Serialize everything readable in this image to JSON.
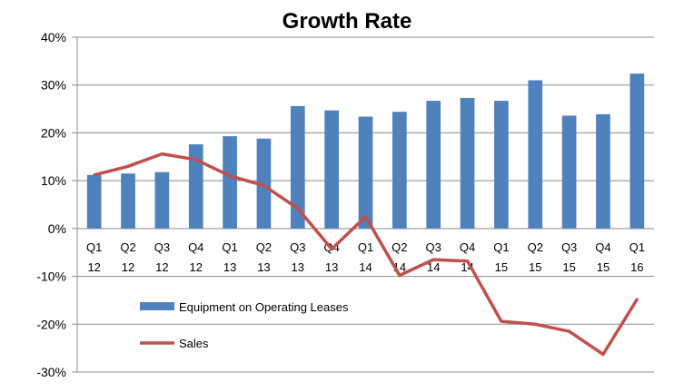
{
  "chart_data": {
    "type": "bar",
    "title": "Growth Rate",
    "categories": [
      [
        "Q1",
        "12"
      ],
      [
        "Q2",
        "12"
      ],
      [
        "Q3",
        "12"
      ],
      [
        "Q4",
        "12"
      ],
      [
        "Q1",
        "13"
      ],
      [
        "Q2",
        "13"
      ],
      [
        "Q3",
        "13"
      ],
      [
        "Q4",
        "13"
      ],
      [
        "Q1",
        "14"
      ],
      [
        "Q2",
        "14"
      ],
      [
        "Q3",
        "14"
      ],
      [
        "Q4",
        "14"
      ],
      [
        "Q1",
        "15"
      ],
      [
        "Q2",
        "15"
      ],
      [
        "Q3",
        "15"
      ],
      [
        "Q4",
        "15"
      ],
      [
        "Q1",
        "16"
      ]
    ],
    "yticks": [
      "40%",
      "30%",
      "20%",
      "10%",
      "0%",
      "-10%",
      "-20%",
      "-30%"
    ],
    "ylim": [
      -30,
      40
    ],
    "ystep": 10,
    "grid": true,
    "legend_position": "bottom-left",
    "series": [
      {
        "name": "Equipment on Operating Leases",
        "type": "bar",
        "color": "#4f81bd",
        "values": [
          11.2,
          11.5,
          11.8,
          17.6,
          19.3,
          18.8,
          25.6,
          24.7,
          23.4,
          24.4,
          26.7,
          27.3,
          26.7,
          31.0,
          23.6,
          23.9,
          32.4
        ]
      },
      {
        "name": "Sales",
        "type": "line",
        "color": "#c0504d",
        "values": [
          11.2,
          13.0,
          15.6,
          14.4,
          11.0,
          9.0,
          4.2,
          -4.3,
          2.5,
          -9.8,
          -6.5,
          -6.8,
          -19.4,
          -20.0,
          -21.5,
          -26.3,
          -14.8
        ]
      }
    ]
  }
}
